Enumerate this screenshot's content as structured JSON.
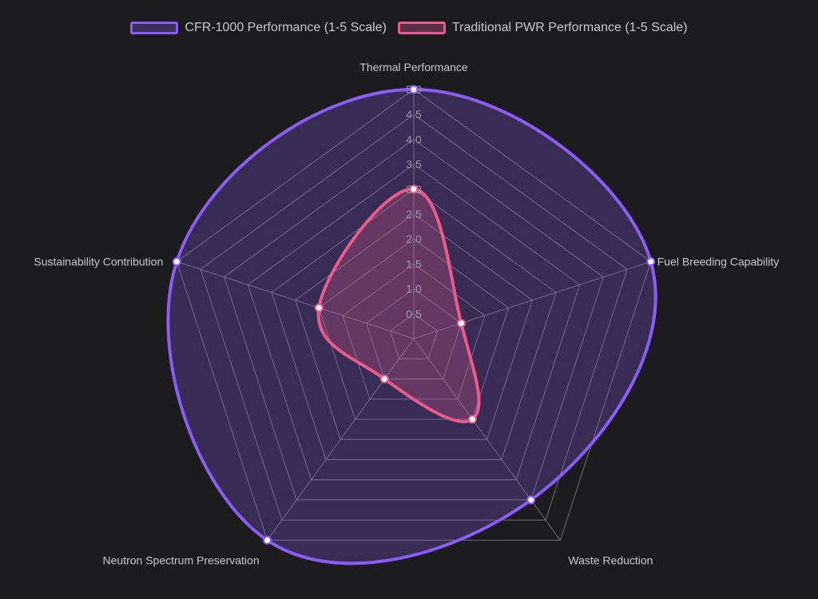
{
  "chart_data": {
    "type": "radar",
    "title": "",
    "categories": [
      "Thermal Performance",
      "Fuel Breeding Capability",
      "Waste Reduction",
      "Neutron Spectrum Preservation",
      "Sustainability Contribution"
    ],
    "r_range": [
      0,
      5.0
    ],
    "ticks": [
      "0.5",
      "1.0",
      "1.5",
      "2.0",
      "2.5",
      "3.0",
      "3.5",
      "4.0",
      "4.5",
      "5.0"
    ],
    "grid": true,
    "legend_position": "top",
    "series": [
      {
        "name": "CFR-1000 Performance (1-5 Scale)",
        "values": [
          5,
          5,
          4,
          5,
          5
        ],
        "color": "#8b5cf6",
        "fill": "#3a2f5a"
      },
      {
        "name": "Traditional PWR Performance (1-5 Scale)",
        "values": [
          3,
          1,
          2,
          1,
          2
        ],
        "color": "#e85b8a",
        "fill": "#5a2f4a"
      }
    ]
  }
}
